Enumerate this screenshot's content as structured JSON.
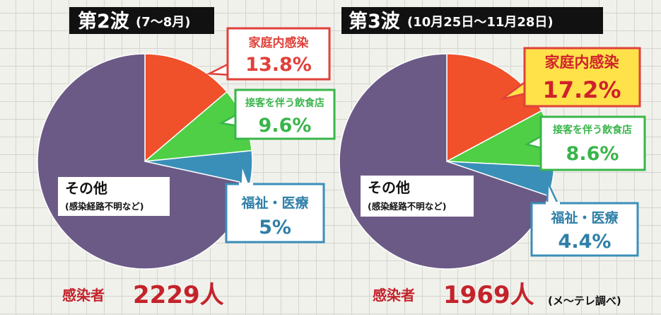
{
  "chart_data": [
    {
      "type": "pie",
      "title": "第2波",
      "subtitle": "(7〜8月)",
      "slices": [
        {
          "label": "家庭内感染",
          "value": 13.8,
          "value_label": "13.8%",
          "color": "#f0502a"
        },
        {
          "label": "接客を伴う飲食店",
          "value": 9.6,
          "value_label": "9.6%",
          "color": "#4fcf45"
        },
        {
          "label": "福祉・医療",
          "value": 5.0,
          "value_label": "5%",
          "color": "#3a8fb9"
        },
        {
          "label": "その他",
          "sublabel": "(感染経路不明など)",
          "value": 71.6,
          "color": "#6b5a86"
        }
      ],
      "total_label": "感染者",
      "total_value": "2229人"
    },
    {
      "type": "pie",
      "title": "第3波",
      "subtitle": "(10月25日〜11月28日)",
      "slices": [
        {
          "label": "家庭内感染",
          "value": 17.2,
          "value_label": "17.2%",
          "color": "#f0502a",
          "highlight": true
        },
        {
          "label": "接客を伴う飲食店",
          "value": 8.6,
          "value_label": "8.6%",
          "color": "#4fcf45"
        },
        {
          "label": "福祉・医療",
          "value": 4.4,
          "value_label": "4.4%",
          "color": "#3a8fb9"
        },
        {
          "label": "その他",
          "sublabel": "(感染経路不明など)",
          "value": 69.8,
          "color": "#6b5a86"
        }
      ],
      "total_label": "感染者",
      "total_value": "1969人"
    }
  ],
  "source_note": "(メ〜テレ調べ)",
  "colors": {
    "accent_red": "#c4232b",
    "callout_red_border": "#e0413a",
    "callout_green_border": "#39b54a",
    "callout_blue_border": "#3a8fb9",
    "highlight_fill": "#ffe24a"
  }
}
